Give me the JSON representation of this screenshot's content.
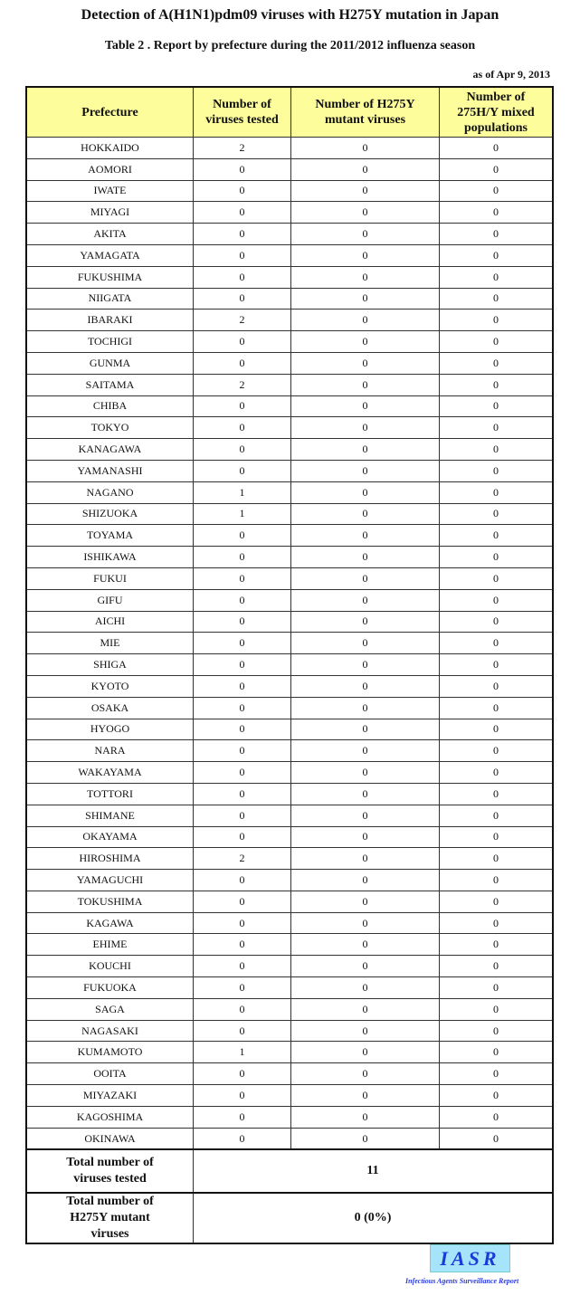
{
  "title": "Detection of A(H1N1)pdm09 viruses with H275Y mutation in Japan",
  "subtitle": "Table 2 .  Report by prefecture during the 2011/2012 influenza season",
  "as_of": "as of Apr 9, 2013",
  "headers": [
    "Prefecture",
    "Number of viruses tested",
    "Number of H275Y mutant viruses",
    "Number of 275H/Y mixed populations"
  ],
  "rows": [
    [
      "HOKKAIDO",
      2,
      0,
      0
    ],
    [
      "AOMORI",
      0,
      0,
      0
    ],
    [
      "IWATE",
      0,
      0,
      0
    ],
    [
      "MIYAGI",
      0,
      0,
      0
    ],
    [
      "AKITA",
      0,
      0,
      0
    ],
    [
      "YAMAGATA",
      0,
      0,
      0
    ],
    [
      "FUKUSHIMA",
      0,
      0,
      0
    ],
    [
      "NIIGATA",
      0,
      0,
      0
    ],
    [
      "IBARAKI",
      2,
      0,
      0
    ],
    [
      "TOCHIGI",
      0,
      0,
      0
    ],
    [
      "GUNMA",
      0,
      0,
      0
    ],
    [
      "SAITAMA",
      2,
      0,
      0
    ],
    [
      "CHIBA",
      0,
      0,
      0
    ],
    [
      "TOKYO",
      0,
      0,
      0
    ],
    [
      "KANAGAWA",
      0,
      0,
      0
    ],
    [
      "YAMANASHI",
      0,
      0,
      0
    ],
    [
      "NAGANO",
      1,
      0,
      0
    ],
    [
      "SHIZUOKA",
      1,
      0,
      0
    ],
    [
      "TOYAMA",
      0,
      0,
      0
    ],
    [
      "ISHIKAWA",
      0,
      0,
      0
    ],
    [
      "FUKUI",
      0,
      0,
      0
    ],
    [
      "GIFU",
      0,
      0,
      0
    ],
    [
      "AICHI",
      0,
      0,
      0
    ],
    [
      "MIE",
      0,
      0,
      0
    ],
    [
      "SHIGA",
      0,
      0,
      0
    ],
    [
      "KYOTO",
      0,
      0,
      0
    ],
    [
      "OSAKA",
      0,
      0,
      0
    ],
    [
      "HYOGO",
      0,
      0,
      0
    ],
    [
      "NARA",
      0,
      0,
      0
    ],
    [
      "WAKAYAMA",
      0,
      0,
      0
    ],
    [
      "TOTTORI",
      0,
      0,
      0
    ],
    [
      "SHIMANE",
      0,
      0,
      0
    ],
    [
      "OKAYAMA",
      0,
      0,
      0
    ],
    [
      "HIROSHIMA",
      2,
      0,
      0
    ],
    [
      "YAMAGUCHI",
      0,
      0,
      0
    ],
    [
      "TOKUSHIMA",
      0,
      0,
      0
    ],
    [
      "KAGAWA",
      0,
      0,
      0
    ],
    [
      "EHIME",
      0,
      0,
      0
    ],
    [
      "KOUCHI",
      0,
      0,
      0
    ],
    [
      "FUKUOKA",
      0,
      0,
      0
    ],
    [
      "SAGA",
      0,
      0,
      0
    ],
    [
      "NAGASAKI",
      0,
      0,
      0
    ],
    [
      "KUMAMOTO",
      1,
      0,
      0
    ],
    [
      "OOITA",
      0,
      0,
      0
    ],
    [
      "MIYAZAKI",
      0,
      0,
      0
    ],
    [
      "KAGOSHIMA",
      0,
      0,
      0
    ],
    [
      "OKINAWA",
      0,
      0,
      0
    ]
  ],
  "totals": [
    {
      "label": "Total number of viruses tested",
      "value": "11"
    },
    {
      "label": "Total number of H275Y mutant viruses",
      "value": "0 (0%)"
    }
  ],
  "logo": {
    "text": "IASR",
    "subtitle": "Infectious Agents Surveillance Report"
  }
}
